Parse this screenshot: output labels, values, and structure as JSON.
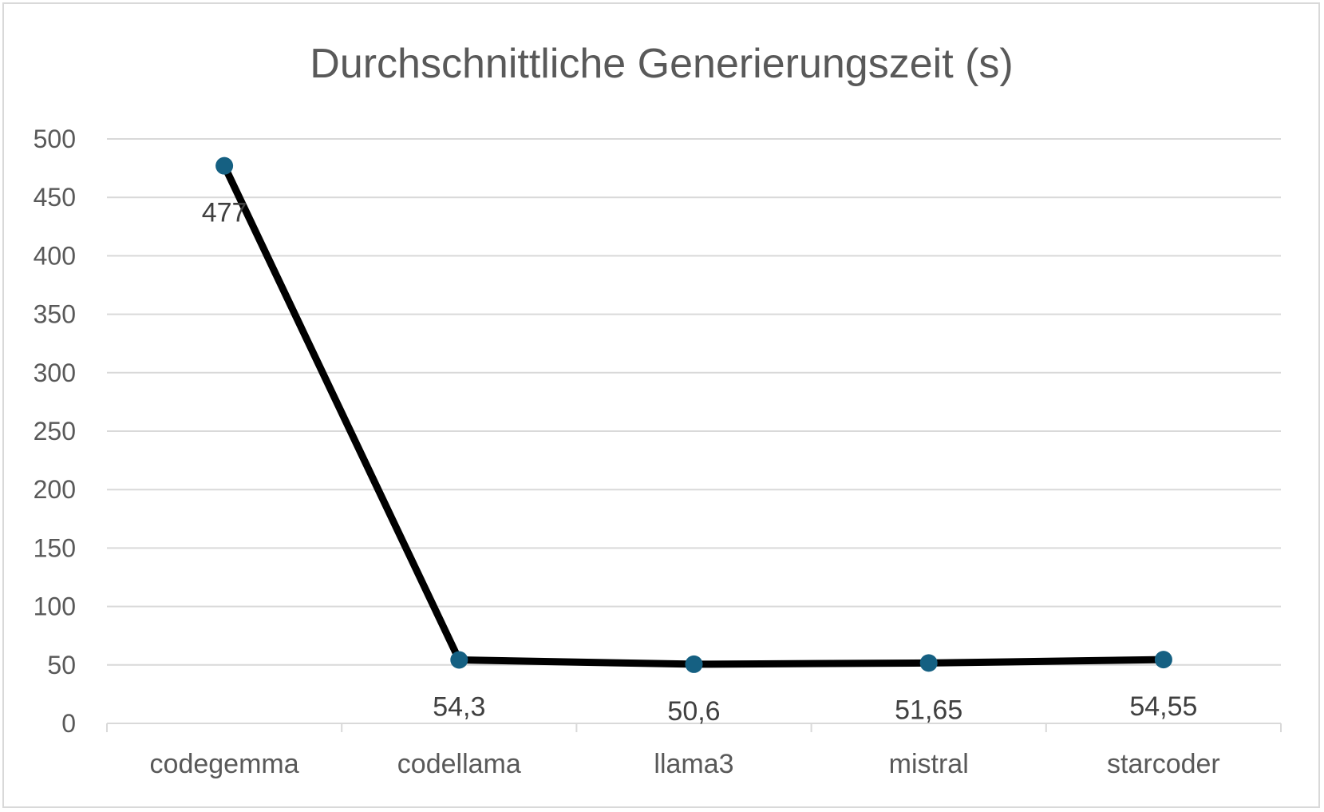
{
  "chart_data": {
    "type": "line",
    "title": "Durchschnittliche Generierungszeit (s)",
    "categories": [
      "codegemma",
      "codellama",
      "llama3",
      "mistral",
      "starcoder"
    ],
    "series": [
      {
        "values": [
          477,
          54.3,
          50.6,
          51.65,
          54.55
        ],
        "data_labels": [
          "477",
          "54,3",
          "50,6",
          "51,65",
          "54,55"
        ],
        "line_color": "#000000",
        "marker_color": "#156082"
      }
    ],
    "y_ticks": [
      "0",
      "50",
      "100",
      "150",
      "200",
      "250",
      "300",
      "350",
      "400",
      "450",
      "500"
    ],
    "ylim": [
      0,
      500
    ],
    "grid": true,
    "legend": "none"
  }
}
